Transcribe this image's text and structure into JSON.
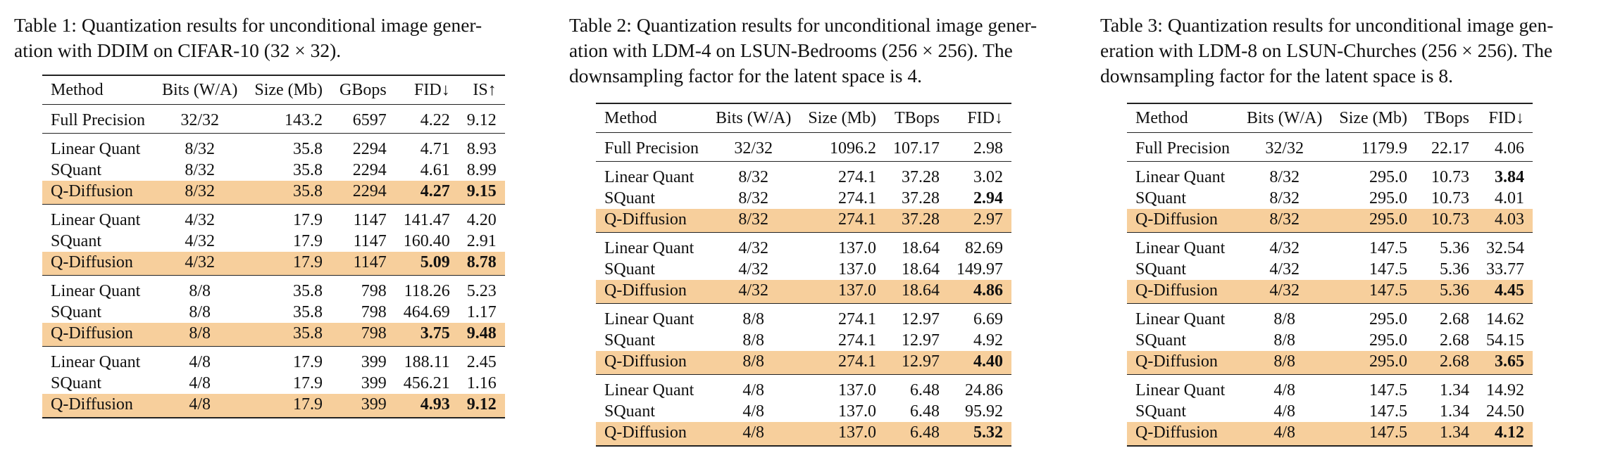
{
  "tables": [
    {
      "caption": "Table 1: Quantization results for unconditional image generation with DDIM on CIFAR-10 (32 × 32).",
      "caption_lines": [
        "Table 1: Quantization results for unconditional image gener-",
        "ation with DDIM on CIFAR-10 (32 × 32)."
      ],
      "columns": [
        "Method",
        "Bits (W/A)",
        "Size (Mb)",
        "GBops",
        "FID↓",
        "IS↑"
      ],
      "groups": [
        [
          [
            "Full Precision",
            "32/32",
            "143.2",
            "6597",
            "4.22",
            "9.12"
          ]
        ],
        [
          [
            "Linear Quant",
            "8/32",
            "35.8",
            "2294",
            "4.71",
            "8.93"
          ],
          [
            "SQuant",
            "8/32",
            "35.8",
            "2294",
            "4.61",
            "8.99"
          ],
          [
            "Q-Diffusion",
            "8/32",
            "35.8",
            "2294",
            "4.27",
            "9.15"
          ]
        ],
        [
          [
            "Linear Quant",
            "4/32",
            "17.9",
            "1147",
            "141.47",
            "4.20"
          ],
          [
            "SQuant",
            "4/32",
            "17.9",
            "1147",
            "160.40",
            "2.91"
          ],
          [
            "Q-Diffusion",
            "4/32",
            "17.9",
            "1147",
            "5.09",
            "8.78"
          ]
        ],
        [
          [
            "Linear Quant",
            "8/8",
            "35.8",
            "798",
            "118.26",
            "5.23"
          ],
          [
            "SQuant",
            "8/8",
            "35.8",
            "798",
            "464.69",
            "1.17"
          ],
          [
            "Q-Diffusion",
            "8/8",
            "35.8",
            "798",
            "3.75",
            "9.48"
          ]
        ],
        [
          [
            "Linear Quant",
            "4/8",
            "17.9",
            "399",
            "188.11",
            "2.45"
          ],
          [
            "SQuant",
            "4/8",
            "17.9",
            "399",
            "456.21",
            "1.16"
          ],
          [
            "Q-Diffusion",
            "4/8",
            "17.9",
            "399",
            "4.93",
            "9.12"
          ]
        ]
      ],
      "bold": [
        "1.2.4",
        "1.2.5",
        "2.2.4",
        "2.2.5",
        "3.2.4",
        "3.2.5",
        "4.2.4",
        "4.2.5"
      ]
    },
    {
      "caption": "Table 2: Quantization results for unconditional image generation with LDM-4 on LSUN-Bedrooms (256 × 256). The downsampling factor for the latent space is 4.",
      "caption_lines": [
        "Table 2: Quantization results for unconditional image gener-",
        "ation with LDM-4 on LSUN-Bedrooms (256 × 256). The",
        "downsampling factor for the latent space is 4."
      ],
      "columns": [
        "Method",
        "Bits (W/A)",
        "Size (Mb)",
        "TBops",
        "FID↓"
      ],
      "groups": [
        [
          [
            "Full Precision",
            "32/32",
            "1096.2",
            "107.17",
            "2.98"
          ]
        ],
        [
          [
            "Linear Quant",
            "8/32",
            "274.1",
            "37.28",
            "3.02"
          ],
          [
            "SQuant",
            "8/32",
            "274.1",
            "37.28",
            "2.94"
          ],
          [
            "Q-Diffusion",
            "8/32",
            "274.1",
            "37.28",
            "2.97"
          ]
        ],
        [
          [
            "Linear Quant",
            "4/32",
            "137.0",
            "18.64",
            "82.69"
          ],
          [
            "SQuant",
            "4/32",
            "137.0",
            "18.64",
            "149.97"
          ],
          [
            "Q-Diffusion",
            "4/32",
            "137.0",
            "18.64",
            "4.86"
          ]
        ],
        [
          [
            "Linear Quant",
            "8/8",
            "274.1",
            "12.97",
            "6.69"
          ],
          [
            "SQuant",
            "8/8",
            "274.1",
            "12.97",
            "4.92"
          ],
          [
            "Q-Diffusion",
            "8/8",
            "274.1",
            "12.97",
            "4.40"
          ]
        ],
        [
          [
            "Linear Quant",
            "4/8",
            "137.0",
            "6.48",
            "24.86"
          ],
          [
            "SQuant",
            "4/8",
            "137.0",
            "6.48",
            "95.92"
          ],
          [
            "Q-Diffusion",
            "4/8",
            "137.0",
            "6.48",
            "5.32"
          ]
        ]
      ],
      "bold": [
        "1.1.4",
        "2.2.4",
        "3.2.4",
        "4.2.4"
      ]
    },
    {
      "caption": "Table 3: Quantization results for unconditional image generation with LDM-8 on LSUN-Churches (256 × 256). The downsampling factor for the latent space is 8.",
      "caption_lines": [
        "Table 3: Quantization results for unconditional image gen-",
        "eration with LDM-8 on LSUN-Churches (256 × 256). The",
        "downsampling factor for the latent space is 8."
      ],
      "columns": [
        "Method",
        "Bits (W/A)",
        "Size (Mb)",
        "TBops",
        "FID↓"
      ],
      "groups": [
        [
          [
            "Full Precision",
            "32/32",
            "1179.9",
            "22.17",
            "4.06"
          ]
        ],
        [
          [
            "Linear Quant",
            "8/32",
            "295.0",
            "10.73",
            "3.84"
          ],
          [
            "SQuant",
            "8/32",
            "295.0",
            "10.73",
            "4.01"
          ],
          [
            "Q-Diffusion",
            "8/32",
            "295.0",
            "10.73",
            "4.03"
          ]
        ],
        [
          [
            "Linear Quant",
            "4/32",
            "147.5",
            "5.36",
            "32.54"
          ],
          [
            "SQuant",
            "4/32",
            "147.5",
            "5.36",
            "33.77"
          ],
          [
            "Q-Diffusion",
            "4/32",
            "147.5",
            "5.36",
            "4.45"
          ]
        ],
        [
          [
            "Linear Quant",
            "8/8",
            "295.0",
            "2.68",
            "14.62"
          ],
          [
            "SQuant",
            "8/8",
            "295.0",
            "2.68",
            "54.15"
          ],
          [
            "Q-Diffusion",
            "8/8",
            "295.0",
            "2.68",
            "3.65"
          ]
        ],
        [
          [
            "Linear Quant",
            "4/8",
            "147.5",
            "1.34",
            "14.92"
          ],
          [
            "SQuant",
            "4/8",
            "147.5",
            "1.34",
            "24.50"
          ],
          [
            "Q-Diffusion",
            "4/8",
            "147.5",
            "1.34",
            "4.12"
          ]
        ]
      ],
      "bold": [
        "1.0.4",
        "2.2.4",
        "3.2.4",
        "4.2.4"
      ]
    }
  ],
  "highlight_method": "Q-Diffusion",
  "colors": {
    "highlight": "#f7cf9c",
    "rule": "#222222"
  }
}
